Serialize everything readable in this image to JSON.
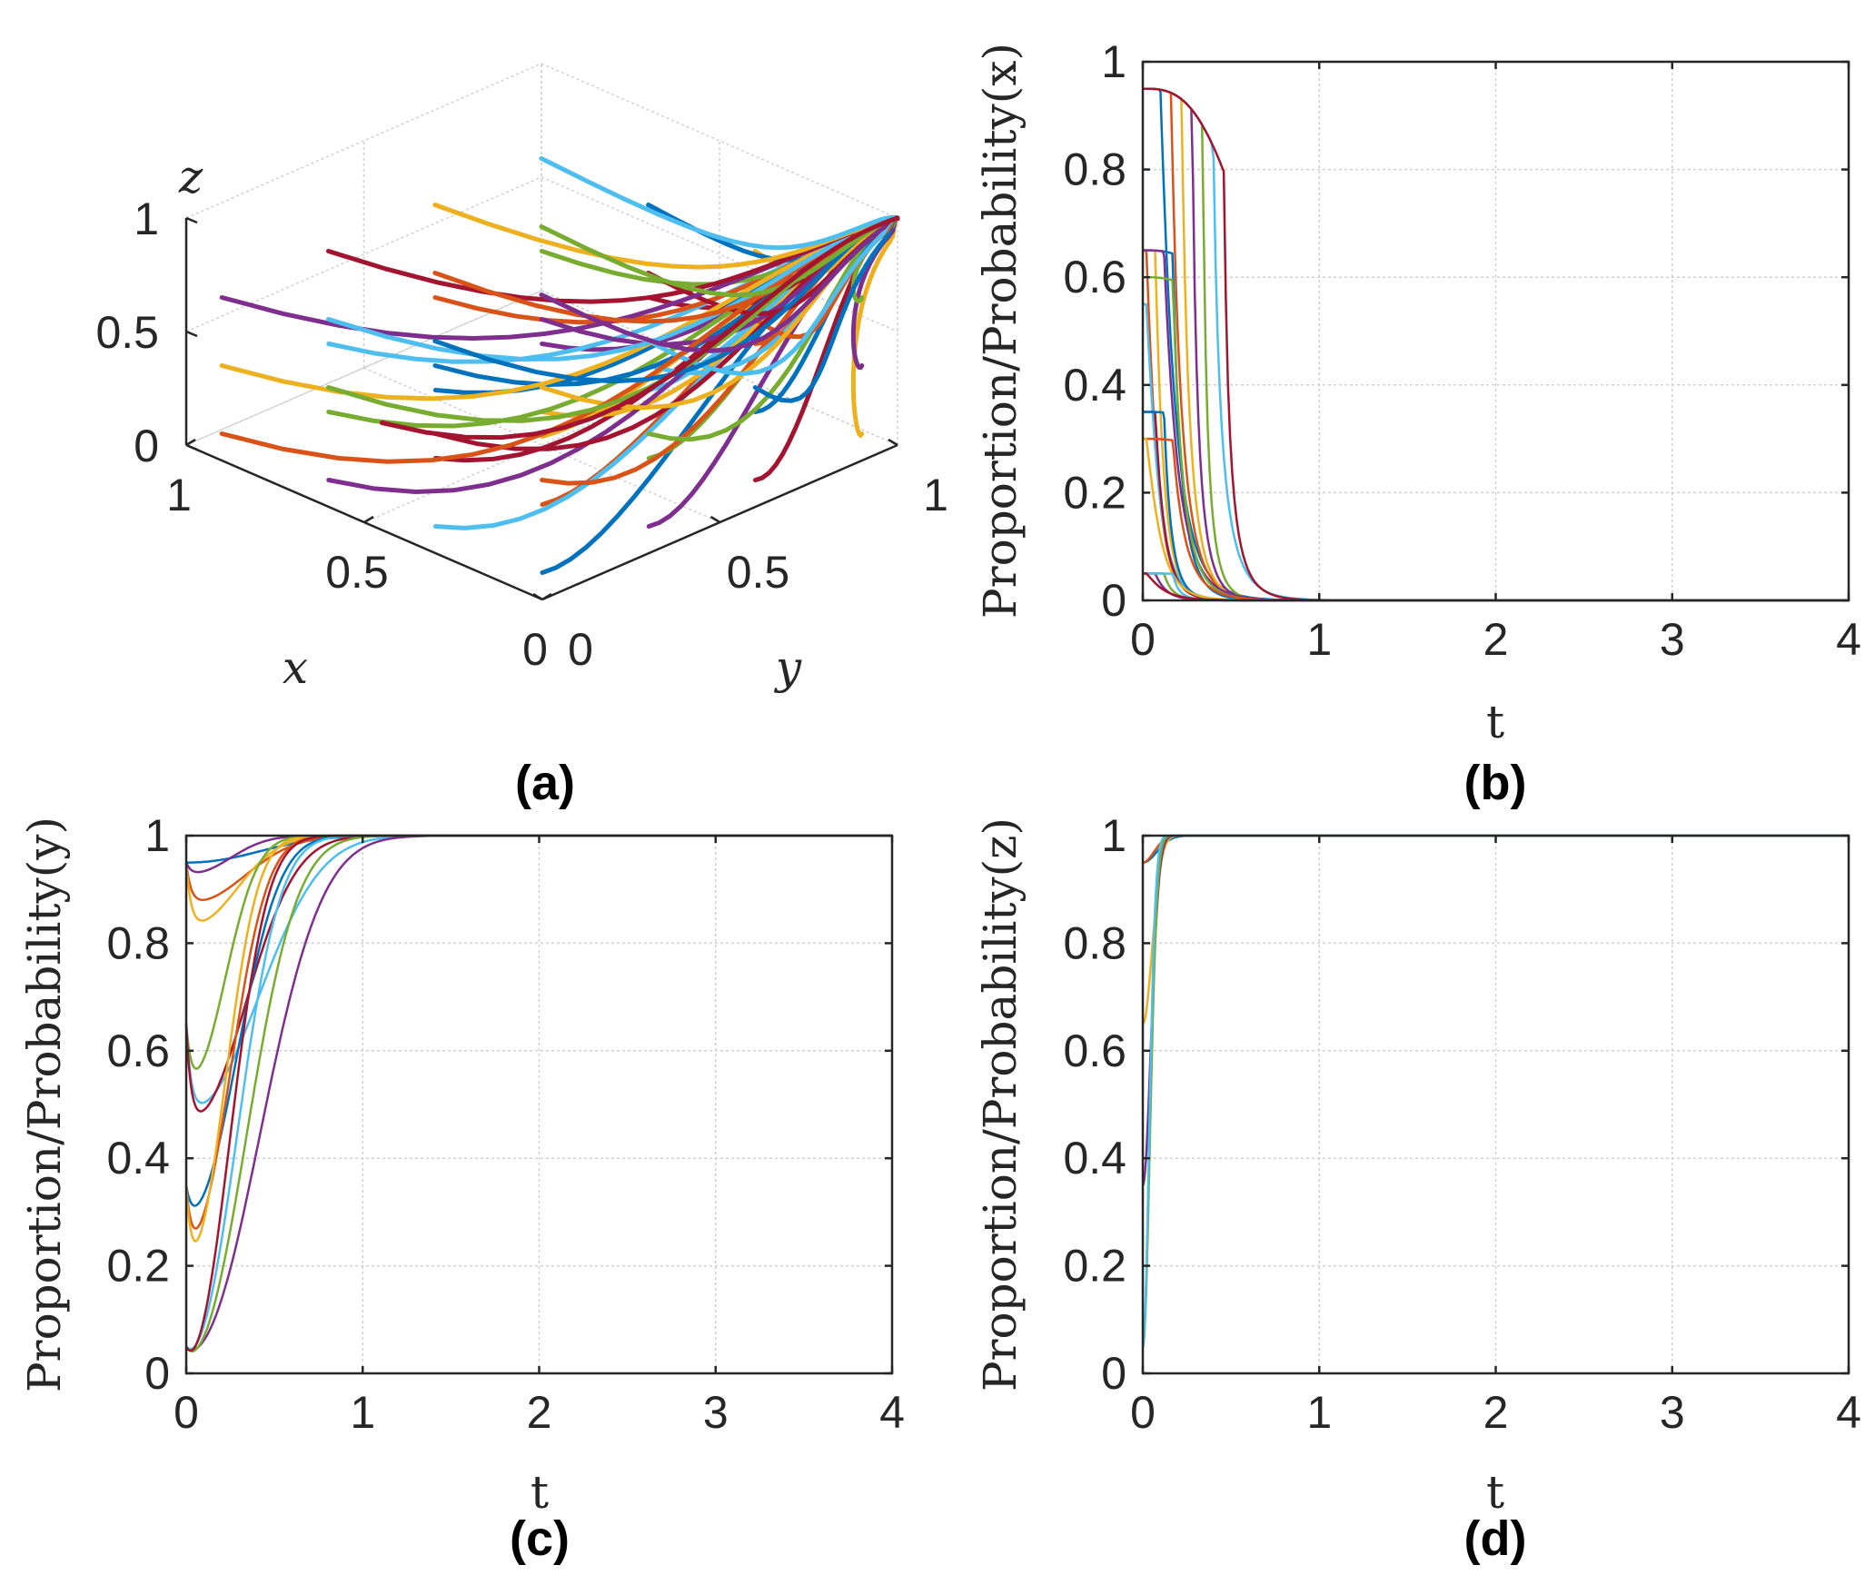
{
  "colors": [
    "#0072BD",
    "#D95319",
    "#EDB120",
    "#7E2F8E",
    "#77AC30",
    "#4DBEEE",
    "#A2142F"
  ],
  "panels": {
    "a": {
      "label": "(a)"
    },
    "b": {
      "label": "(b)"
    },
    "c": {
      "label": "(c)"
    },
    "d": {
      "label": "(d)"
    }
  },
  "chart_data": [
    {
      "id": "a",
      "type": "line",
      "projection": "3d",
      "xlabel": "x",
      "ylabel": "y",
      "zlabel": "z",
      "xlim": [
        0,
        1
      ],
      "ylim": [
        0,
        1
      ],
      "zlim": [
        0,
        1
      ],
      "xticks": [
        "1",
        "0.5",
        "0"
      ],
      "yticks": [
        "0",
        "0.5",
        "1"
      ],
      "zticks": [
        "1",
        "0.5",
        "0"
      ],
      "trajectories": 49,
      "description_of_dynamics": "trajectories from initial states x in {0.05,0.35,0.65,0.95} etc. converge toward x=0, y=1, z=1"
    },
    {
      "id": "b",
      "type": "line",
      "xlabel": "t",
      "ylabel": "Proportion/Probability(x)",
      "xlim": [
        0,
        4
      ],
      "ylim": [
        0,
        1
      ],
      "xticks": [
        "0",
        "1",
        "2",
        "3",
        "4"
      ],
      "yticks": [
        "0",
        "0.2",
        "0.4",
        "0.6",
        "0.8",
        "1"
      ],
      "initial_values": [
        0.95,
        0.95,
        0.95,
        0.95,
        0.95,
        0.95,
        0.95,
        0.65,
        0.65,
        0.65,
        0.65,
        0.6,
        0.55,
        0.35,
        0.35,
        0.3,
        0.3,
        0.05,
        0.05,
        0.05,
        0.05
      ],
      "final_value": 0,
      "convergence_time_approx": 0.9
    },
    {
      "id": "c",
      "type": "line",
      "xlabel": "t",
      "ylabel": "Proportion/Probability(y)",
      "xlim": [
        0,
        4
      ],
      "ylim": [
        0,
        1
      ],
      "xticks": [
        "0",
        "1",
        "2",
        "3",
        "4"
      ],
      "yticks": [
        "0",
        "0.2",
        "0.4",
        "0.6",
        "0.8",
        "1"
      ],
      "initial_values": [
        0.95,
        0.95,
        0.95,
        0.95,
        0.65,
        0.65,
        0.65,
        0.35,
        0.35,
        0.35,
        0.05,
        0.05,
        0.05,
        0.05
      ],
      "minimum_values": [
        0.95,
        0.88,
        0.84,
        0.93,
        0.55,
        0.5,
        0.48,
        0.3,
        0.25,
        0.22,
        0.04,
        0.035,
        0.04,
        0.035
      ],
      "final_value": 1,
      "convergence_time_approx": 1.8
    },
    {
      "id": "d",
      "type": "line",
      "xlabel": "t",
      "ylabel": "Proportion/Probability(z)",
      "xlim": [
        0,
        4
      ],
      "ylim": [
        0,
        1
      ],
      "xticks": [
        "0",
        "1",
        "2",
        "3",
        "4"
      ],
      "yticks": [
        "0",
        "0.2",
        "0.4",
        "0.6",
        "0.8",
        "1"
      ],
      "initial_values": [
        0.95,
        0.95,
        0.65,
        0.35,
        0.05,
        0.05
      ],
      "final_value": 1,
      "convergence_time_approx": 0.7
    }
  ]
}
